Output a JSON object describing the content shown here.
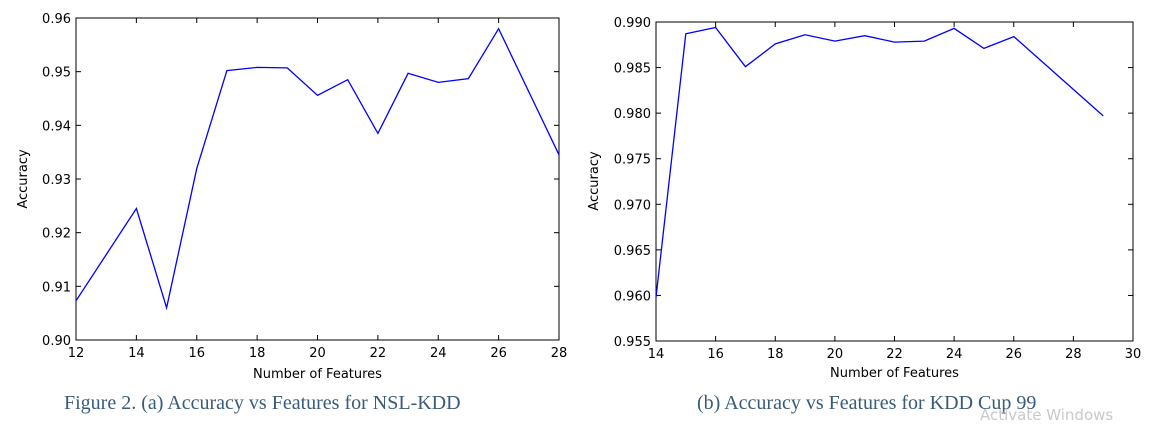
{
  "colors": {
    "line": "#0000ff",
    "axes": "#000000"
  },
  "captions": {
    "a": "Figure 2. (a) Accuracy vs Features for NSL-KDD",
    "b": "(b) Accuracy vs Features for KDD Cup 99"
  },
  "watermark": "Activate Windows",
  "chart_data": [
    {
      "type": "line",
      "title": "",
      "xlabel": "Number of Features",
      "ylabel": "Accuracy",
      "xlim": [
        12,
        28
      ],
      "ylim": [
        0.9,
        0.96
      ],
      "xticks": [
        12,
        14,
        16,
        18,
        20,
        22,
        24,
        26,
        28
      ],
      "yticks": [
        0.9,
        0.91,
        0.92,
        0.93,
        0.94,
        0.95,
        0.96
      ],
      "xtick_labels": [
        "12",
        "14",
        "16",
        "18",
        "20",
        "22",
        "24",
        "26",
        "28"
      ],
      "ytick_labels": [
        "0.90",
        "0.91",
        "0.92",
        "0.93",
        "0.94",
        "0.95",
        "0.96"
      ],
      "series": [
        {
          "name": "NSL-KDD",
          "x": [
            12,
            14,
            15,
            16,
            17,
            18,
            19,
            20,
            21,
            22,
            23,
            24,
            25,
            26,
            28
          ],
          "y": [
            0.9073,
            0.9245,
            0.906,
            0.932,
            0.9502,
            0.9508,
            0.9507,
            0.9456,
            0.9485,
            0.9385,
            0.9497,
            0.948,
            0.9487,
            0.958,
            0.9345
          ]
        }
      ]
    },
    {
      "type": "line",
      "title": "",
      "xlabel": "Number of Features",
      "ylabel": "Accuracy",
      "xlim": [
        14,
        30
      ],
      "ylim": [
        0.955,
        0.99
      ],
      "xticks": [
        14,
        16,
        18,
        20,
        22,
        24,
        26,
        28,
        30
      ],
      "yticks": [
        0.955,
        0.96,
        0.965,
        0.97,
        0.975,
        0.98,
        0.985,
        0.99
      ],
      "xtick_labels": [
        "14",
        "16",
        "18",
        "20",
        "22",
        "24",
        "26",
        "28",
        "30"
      ],
      "ytick_labels": [
        "0.955",
        "0.960",
        "0.965",
        "0.970",
        "0.975",
        "0.980",
        "0.985",
        "0.990"
      ],
      "series": [
        {
          "name": "KDD Cup 99",
          "x": [
            14,
            15,
            16,
            17,
            18,
            19,
            20,
            21,
            22,
            23,
            24,
            25,
            26,
            29
          ],
          "y": [
            0.9598,
            0.9887,
            0.9894,
            0.9851,
            0.9876,
            0.9886,
            0.9879,
            0.9885,
            0.9878,
            0.9879,
            0.9893,
            0.9871,
            0.9884,
            0.9797
          ]
        }
      ]
    }
  ]
}
